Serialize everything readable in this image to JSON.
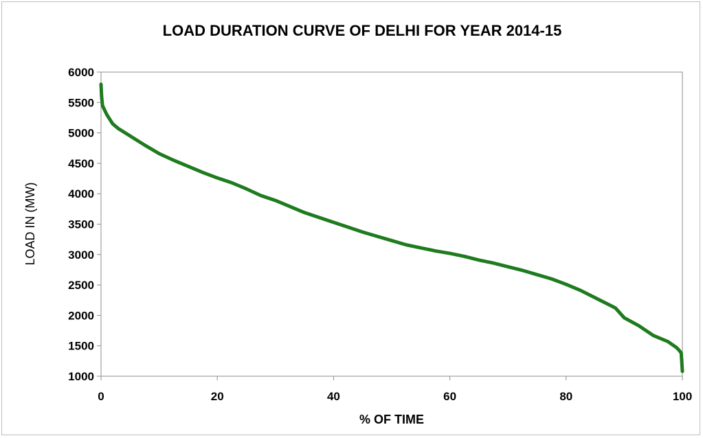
{
  "chart_data": {
    "type": "line",
    "title": "LOAD DURATION CURVE OF DELHI FOR YEAR 2014-15",
    "xlabel": "% OF TIME",
    "ylabel": "LOAD IN  (MW)",
    "xlim": [
      0,
      100
    ],
    "ylim": [
      1000,
      6000
    ],
    "x_ticks": [
      0,
      20,
      40,
      60,
      80,
      100
    ],
    "y_ticks": [
      1000,
      1500,
      2000,
      2500,
      3000,
      3500,
      4000,
      4500,
      5000,
      5500,
      6000
    ],
    "grid": false,
    "legend": "none",
    "series": [
      {
        "color": "#1e7b1e",
        "x": [
          0,
          0.1,
          0.25,
          0.5,
          1,
          2,
          3,
          5,
          7.5,
          10,
          12.5,
          15,
          17.5,
          20,
          22.5,
          25,
          27.5,
          30,
          32.5,
          35,
          37.5,
          40,
          42.5,
          45,
          47.5,
          50,
          52.5,
          55,
          57.5,
          60,
          62.5,
          65,
          67.5,
          70,
          72.5,
          75,
          77.5,
          80,
          82.5,
          85,
          87.5,
          88.5,
          90,
          92.5,
          95,
          97.5,
          99,
          99.5,
          99.8,
          100
        ],
        "values": [
          5800,
          5600,
          5450,
          5400,
          5300,
          5150,
          5070,
          4950,
          4800,
          4660,
          4550,
          4450,
          4350,
          4260,
          4180,
          4080,
          3970,
          3890,
          3790,
          3690,
          3610,
          3530,
          3450,
          3370,
          3300,
          3230,
          3160,
          3110,
          3060,
          3020,
          2970,
          2910,
          2860,
          2800,
          2740,
          2670,
          2600,
          2510,
          2410,
          2290,
          2170,
          2120,
          1960,
          1830,
          1670,
          1570,
          1470,
          1420,
          1380,
          1080
        ]
      }
    ]
  }
}
